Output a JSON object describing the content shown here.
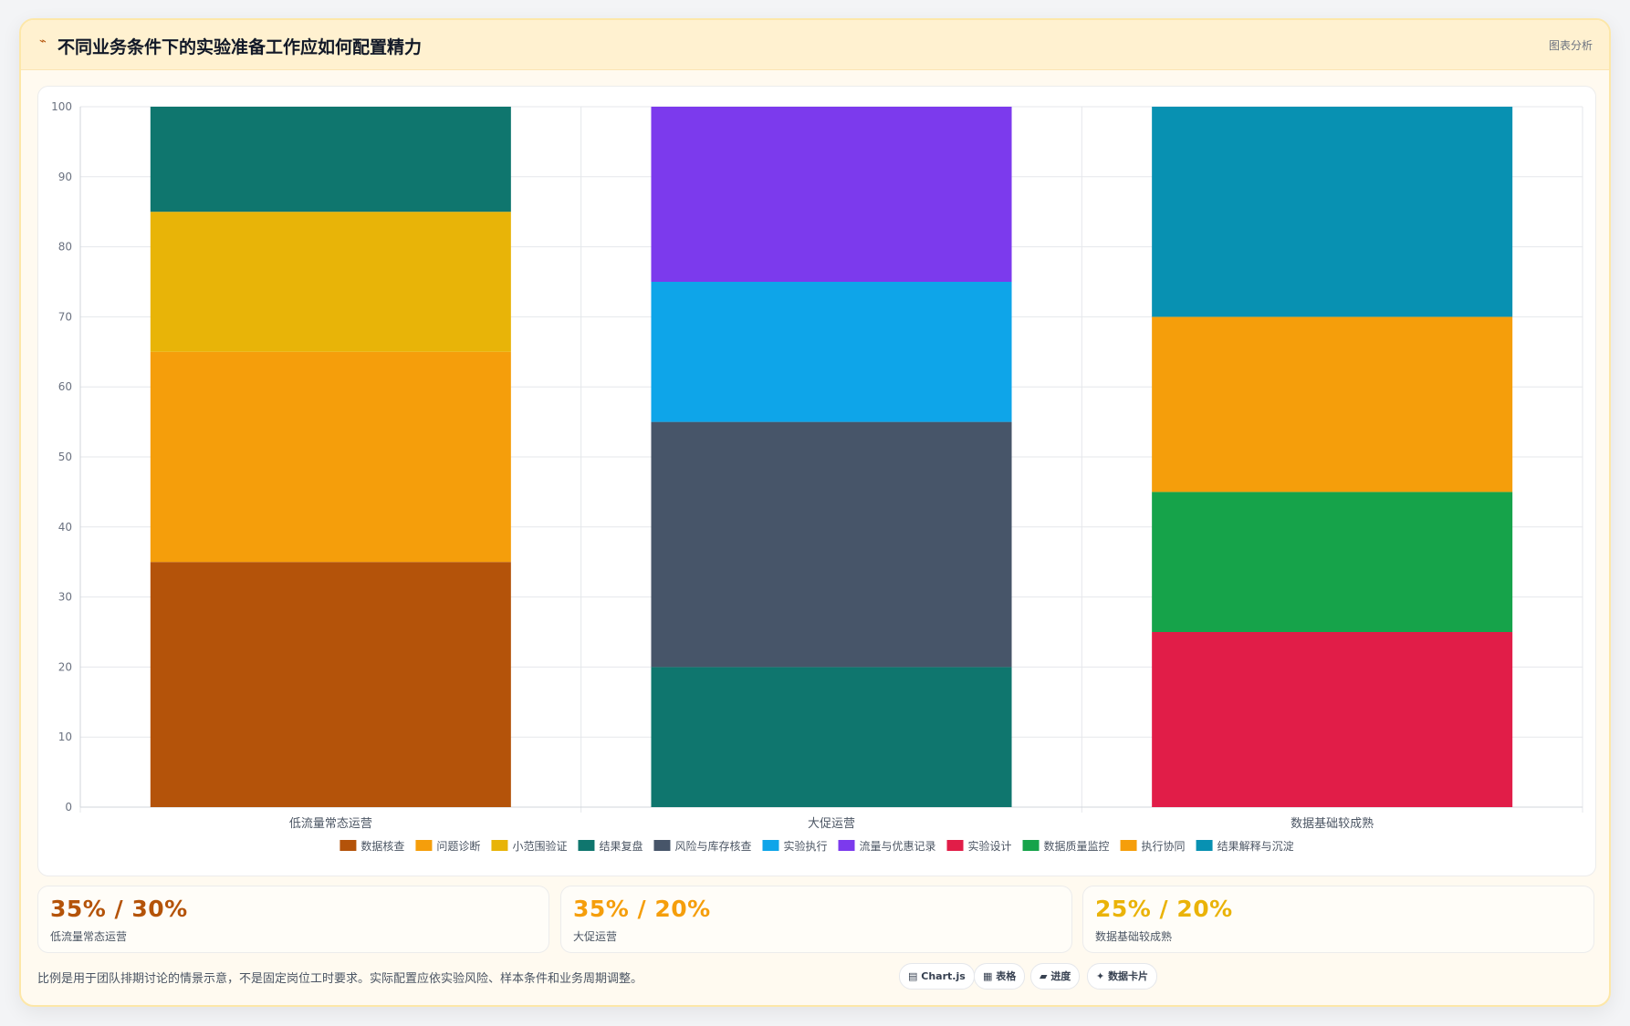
{
  "header": {
    "icon": "trend-icon",
    "title": "不同业务条件下的实验准备工作应如何配置精力",
    "action_label": "图表分析"
  },
  "chart_data": {
    "type": "bar",
    "stacked": true,
    "categories": [
      "低流量常态运营",
      "大促运营",
      "数据基础较成熟"
    ],
    "ylim": [
      0,
      100
    ],
    "yticks": [
      0,
      10,
      20,
      30,
      40,
      50,
      60,
      70,
      80,
      90,
      100
    ],
    "grid": true,
    "legend_position": "bottom",
    "series": [
      {
        "name": "数据核查",
        "color": "#b4530a",
        "values": [
          35,
          0,
          0
        ]
      },
      {
        "name": "问题诊断",
        "color": "#f59e0b",
        "values": [
          30,
          0,
          0
        ]
      },
      {
        "name": "小范围验证",
        "color": "#e8b408",
        "values": [
          20,
          0,
          0
        ]
      },
      {
        "name": "结果复盘",
        "color": "#0f766e",
        "values": [
          15,
          20,
          0
        ]
      },
      {
        "name": "风险与库存核查",
        "color": "#475569",
        "values": [
          0,
          35,
          0
        ]
      },
      {
        "name": "实验执行",
        "color": "#0ea5e9",
        "values": [
          0,
          20,
          0
        ]
      },
      {
        "name": "流量与优惠记录",
        "color": "#7c3aed",
        "values": [
          0,
          25,
          0
        ]
      },
      {
        "name": "实验设计",
        "color": "#e11d48",
        "values": [
          0,
          0,
          25
        ]
      },
      {
        "name": "数据质量监控",
        "color": "#16a34a",
        "values": [
          0,
          0,
          20
        ]
      },
      {
        "name": "执行协同",
        "color": "#f59e0b",
        "values": [
          0,
          0,
          25
        ]
      },
      {
        "name": "结果解释与沉淀",
        "color": "#0891b2",
        "values": [
          0,
          0,
          30
        ]
      }
    ]
  },
  "stats": [
    {
      "value": "35% / 30%",
      "label": "低流量常态运营",
      "color": "#b45309"
    },
    {
      "value": "35% / 20%",
      "label": "大促运营",
      "color": "#f59e0b"
    },
    {
      "value": "25% / 20%",
      "label": "数据基础较成熟",
      "color": "#eab308"
    }
  ],
  "footer": {
    "note": "比例是用于团队排期讨论的情景示意，不是固定岗位工时要求。实际配置应依实验风险、样本条件和业务周期调整。",
    "tags": [
      {
        "icon": "chart-icon",
        "glyph": "▤",
        "label": "Chart.js"
      },
      {
        "icon": "table-icon",
        "glyph": "▦",
        "label": "表格"
      },
      {
        "icon": "progress-icon",
        "glyph": "▰",
        "label": "进度"
      },
      {
        "icon": "card-icon",
        "glyph": "✦",
        "label": "数据卡片"
      }
    ]
  }
}
